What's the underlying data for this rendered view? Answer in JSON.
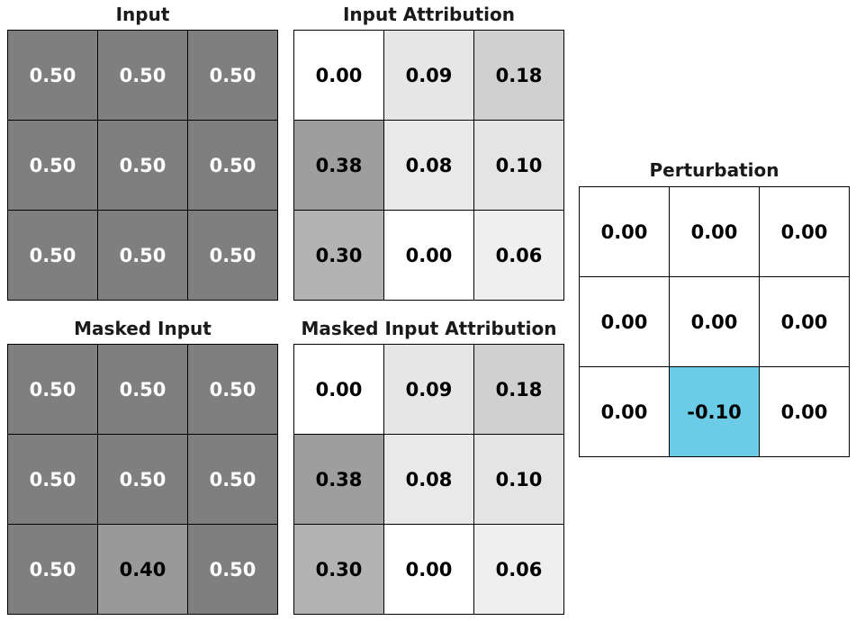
{
  "panels": [
    {
      "id": "input",
      "title": "Input",
      "cells": [
        [
          {
            "text": "0.50",
            "bg": "#7f7f7f",
            "fg": "#ffffff"
          },
          {
            "text": "0.50",
            "bg": "#7f7f7f",
            "fg": "#ffffff"
          },
          {
            "text": "0.50",
            "bg": "#7f7f7f",
            "fg": "#ffffff"
          }
        ],
        [
          {
            "text": "0.50",
            "bg": "#7f7f7f",
            "fg": "#ffffff"
          },
          {
            "text": "0.50",
            "bg": "#7f7f7f",
            "fg": "#ffffff"
          },
          {
            "text": "0.50",
            "bg": "#7f7f7f",
            "fg": "#ffffff"
          }
        ],
        [
          {
            "text": "0.50",
            "bg": "#7f7f7f",
            "fg": "#ffffff"
          },
          {
            "text": "0.50",
            "bg": "#7f7f7f",
            "fg": "#ffffff"
          },
          {
            "text": "0.50",
            "bg": "#7f7f7f",
            "fg": "#ffffff"
          }
        ]
      ]
    },
    {
      "id": "input-attribution",
      "title": "Input Attribution",
      "cells": [
        [
          {
            "text": "0.00",
            "bg": "#ffffff",
            "fg": "#000000"
          },
          {
            "text": "0.09",
            "bg": "#e6e6e6",
            "fg": "#000000"
          },
          {
            "text": "0.18",
            "bg": "#d0d0d0",
            "fg": "#000000"
          }
        ],
        [
          {
            "text": "0.38",
            "bg": "#9e9e9e",
            "fg": "#000000"
          },
          {
            "text": "0.08",
            "bg": "#e9e9e9",
            "fg": "#000000"
          },
          {
            "text": "0.10",
            "bg": "#e4e4e4",
            "fg": "#000000"
          }
        ],
        [
          {
            "text": "0.30",
            "bg": "#b3b3b3",
            "fg": "#000000"
          },
          {
            "text": "0.00",
            "bg": "#ffffff",
            "fg": "#000000"
          },
          {
            "text": "0.06",
            "bg": "#efefef",
            "fg": "#000000"
          }
        ]
      ]
    },
    {
      "id": "masked-input",
      "title": "Masked Input",
      "cells": [
        [
          {
            "text": "0.50",
            "bg": "#7f7f7f",
            "fg": "#ffffff"
          },
          {
            "text": "0.50",
            "bg": "#7f7f7f",
            "fg": "#ffffff"
          },
          {
            "text": "0.50",
            "bg": "#7f7f7f",
            "fg": "#ffffff"
          }
        ],
        [
          {
            "text": "0.50",
            "bg": "#7f7f7f",
            "fg": "#ffffff"
          },
          {
            "text": "0.50",
            "bg": "#7f7f7f",
            "fg": "#ffffff"
          },
          {
            "text": "0.50",
            "bg": "#7f7f7f",
            "fg": "#ffffff"
          }
        ],
        [
          {
            "text": "0.50",
            "bg": "#7f7f7f",
            "fg": "#ffffff"
          },
          {
            "text": "0.40",
            "bg": "#999999",
            "fg": "#000000"
          },
          {
            "text": "0.50",
            "bg": "#7f7f7f",
            "fg": "#ffffff"
          }
        ]
      ]
    },
    {
      "id": "masked-input-attribution",
      "title": "Masked Input Attribution",
      "cells": [
        [
          {
            "text": "0.00",
            "bg": "#ffffff",
            "fg": "#000000"
          },
          {
            "text": "0.09",
            "bg": "#e6e6e6",
            "fg": "#000000"
          },
          {
            "text": "0.18",
            "bg": "#d0d0d0",
            "fg": "#000000"
          }
        ],
        [
          {
            "text": "0.38",
            "bg": "#9e9e9e",
            "fg": "#000000"
          },
          {
            "text": "0.08",
            "bg": "#e9e9e9",
            "fg": "#000000"
          },
          {
            "text": "0.10",
            "bg": "#e4e4e4",
            "fg": "#000000"
          }
        ],
        [
          {
            "text": "0.30",
            "bg": "#b3b3b3",
            "fg": "#000000"
          },
          {
            "text": "0.00",
            "bg": "#ffffff",
            "fg": "#000000"
          },
          {
            "text": "0.06",
            "bg": "#efefef",
            "fg": "#000000"
          }
        ]
      ]
    },
    {
      "id": "perturbation",
      "title": "Perturbation",
      "cells": [
        [
          {
            "text": "0.00",
            "bg": "#ffffff",
            "fg": "#000000"
          },
          {
            "text": "0.00",
            "bg": "#ffffff",
            "fg": "#000000"
          },
          {
            "text": "0.00",
            "bg": "#ffffff",
            "fg": "#000000"
          }
        ],
        [
          {
            "text": "0.00",
            "bg": "#ffffff",
            "fg": "#000000"
          },
          {
            "text": "0.00",
            "bg": "#ffffff",
            "fg": "#000000"
          },
          {
            "text": "0.00",
            "bg": "#ffffff",
            "fg": "#000000"
          }
        ],
        [
          {
            "text": "0.00",
            "bg": "#ffffff",
            "fg": "#000000"
          },
          {
            "text": "-0.10",
            "bg": "#6ccce8",
            "fg": "#000000"
          },
          {
            "text": "0.00",
            "bg": "#ffffff",
            "fg": "#000000"
          }
        ]
      ]
    }
  ]
}
